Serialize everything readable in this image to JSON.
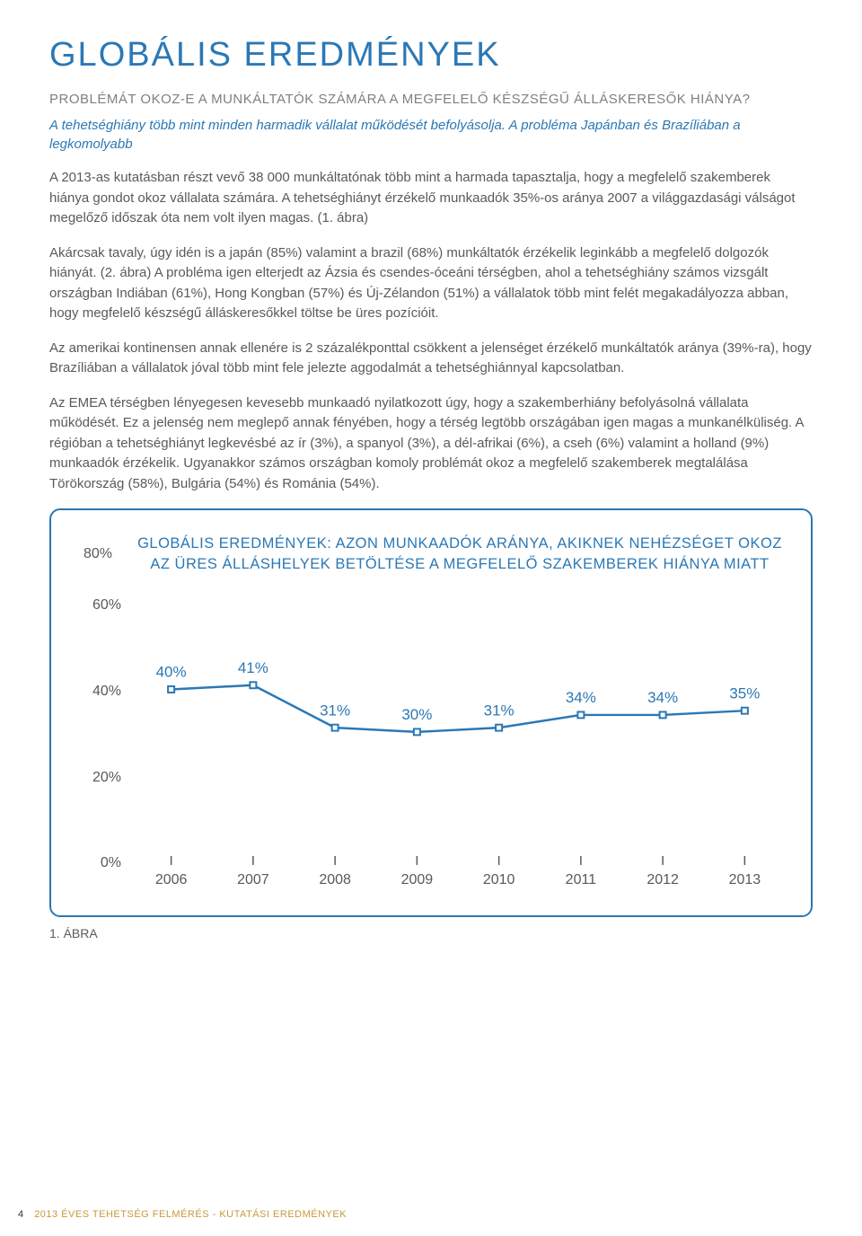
{
  "colors": {
    "title": "#2b78b5",
    "subheading": "#7a8285",
    "italic": "#2b78b5",
    "body": "#5a5a5a",
    "chart_border": "#2b78b5",
    "chart_title": "#2b78b5",
    "chart_tick": "#58595b",
    "line": "#2b78b5",
    "marker_fill": "#ffffff",
    "marker_stroke": "#2b78b5",
    "value_label": "#2b78b5",
    "footer": "#c89a3a"
  },
  "title": "GLOBÁLIS EREDMÉNYEK",
  "subheading": "PROBLÉMÁT OKOZ-E A MUNKÁLTATÓK SZÁMÁRA A MEGFELELŐ KÉSZSÉGŰ ÁLLÁSKERESŐK HIÁNYA?",
  "italic_intro": "A tehetséghiány több mint minden harmadik vállalat működését befolyásolja. A probléma Japánban és Brazíliában a legkomolyabb",
  "paragraphs": [
    "A 2013-as kutatásban részt vevő 38 000 munkáltatónak több mint a harmada tapasztalja, hogy a megfelelő szakemberek hiánya gondot okoz vállalata számára. A tehetséghiányt érzékelő munkaadók 35%-os aránya 2007 a világgazdasági válságot megelőző időszak óta nem volt ilyen magas. (1. ábra)",
    "Akárcsak tavaly, úgy idén is a japán (85%) valamint a brazil (68%) munkáltatók érzékelik leginkább a megfelelő dolgozók hiányát. (2. ábra) A probléma igen elterjedt az Ázsia és csendes-óceáni térségben, ahol a tehetséghiány számos vizsgált országban Indiában (61%), Hong Kongban (57%) és Új-Zélandon (51%) a vállalatok több mint felét megakadályozza abban, hogy megfelelő készségű álláskeresőkkel töltse be üres pozícióit.",
    "Az amerikai kontinensen annak ellenére is 2 százalékponttal csökkent a jelenséget érzékelő munkáltatók aránya (39%-ra), hogy Brazíliában a vállalatok jóval több mint fele jelezte aggodalmát a tehetséghiánnyal kapcsolatban.",
    "Az EMEA térségben lényegesen kevesebb munkaadó nyilatkozott úgy, hogy a szakemberhiány befolyásolná vállalata működését. Ez a jelenség nem meglepő annak fényében, hogy a térség legtöbb országában igen magas a munkanélküliség. A régióban a tehetséghiányt legkevésbé az ír (3%), a spanyol (3%), a dél-afrikai (6%), a cseh (6%) valamint a holland (9%) munkaadók érzékelik. Ugyanakkor számos országban komoly problémát okoz a megfelelő szakemberek megtalálása Törökország (58%), Bulgária (54%) és Románia (54%)."
  ],
  "chart": {
    "type": "line",
    "title": "GLOBÁLIS EREDMÉNYEK: AZON MUNKAADÓK ARÁNYA, AKIKNEK NEHÉZSÉGET OKOZ AZ ÜRES ÁLLÁSHELYEK BETÖLTÉSE A MEGFELELŐ SZAKEMBEREK HIÁNYA MIATT",
    "ylim": [
      0,
      80
    ],
    "ytick_step": 20,
    "ytick_labels": [
      "0%",
      "20%",
      "40%",
      "60%",
      "80%"
    ],
    "years": [
      "2006",
      "2007",
      "2008",
      "2009",
      "2010",
      "2011",
      "2012",
      "2013"
    ],
    "values": [
      40,
      41,
      31,
      30,
      31,
      34,
      34,
      35
    ],
    "value_labels": [
      "40%",
      "41%",
      "31%",
      "30%",
      "31%",
      "34%",
      "34%",
      "35%"
    ],
    "line_width": 2.5,
    "marker_size": 7,
    "label_fontsize": 16,
    "value_fontsize": 17
  },
  "figure_label": "1. ÁBRA",
  "footer": {
    "page": "4",
    "text": "2013 ÉVES TEHETSÉG FELMÉRÉS - KUTATÁSI EREDMÉNYEK"
  }
}
